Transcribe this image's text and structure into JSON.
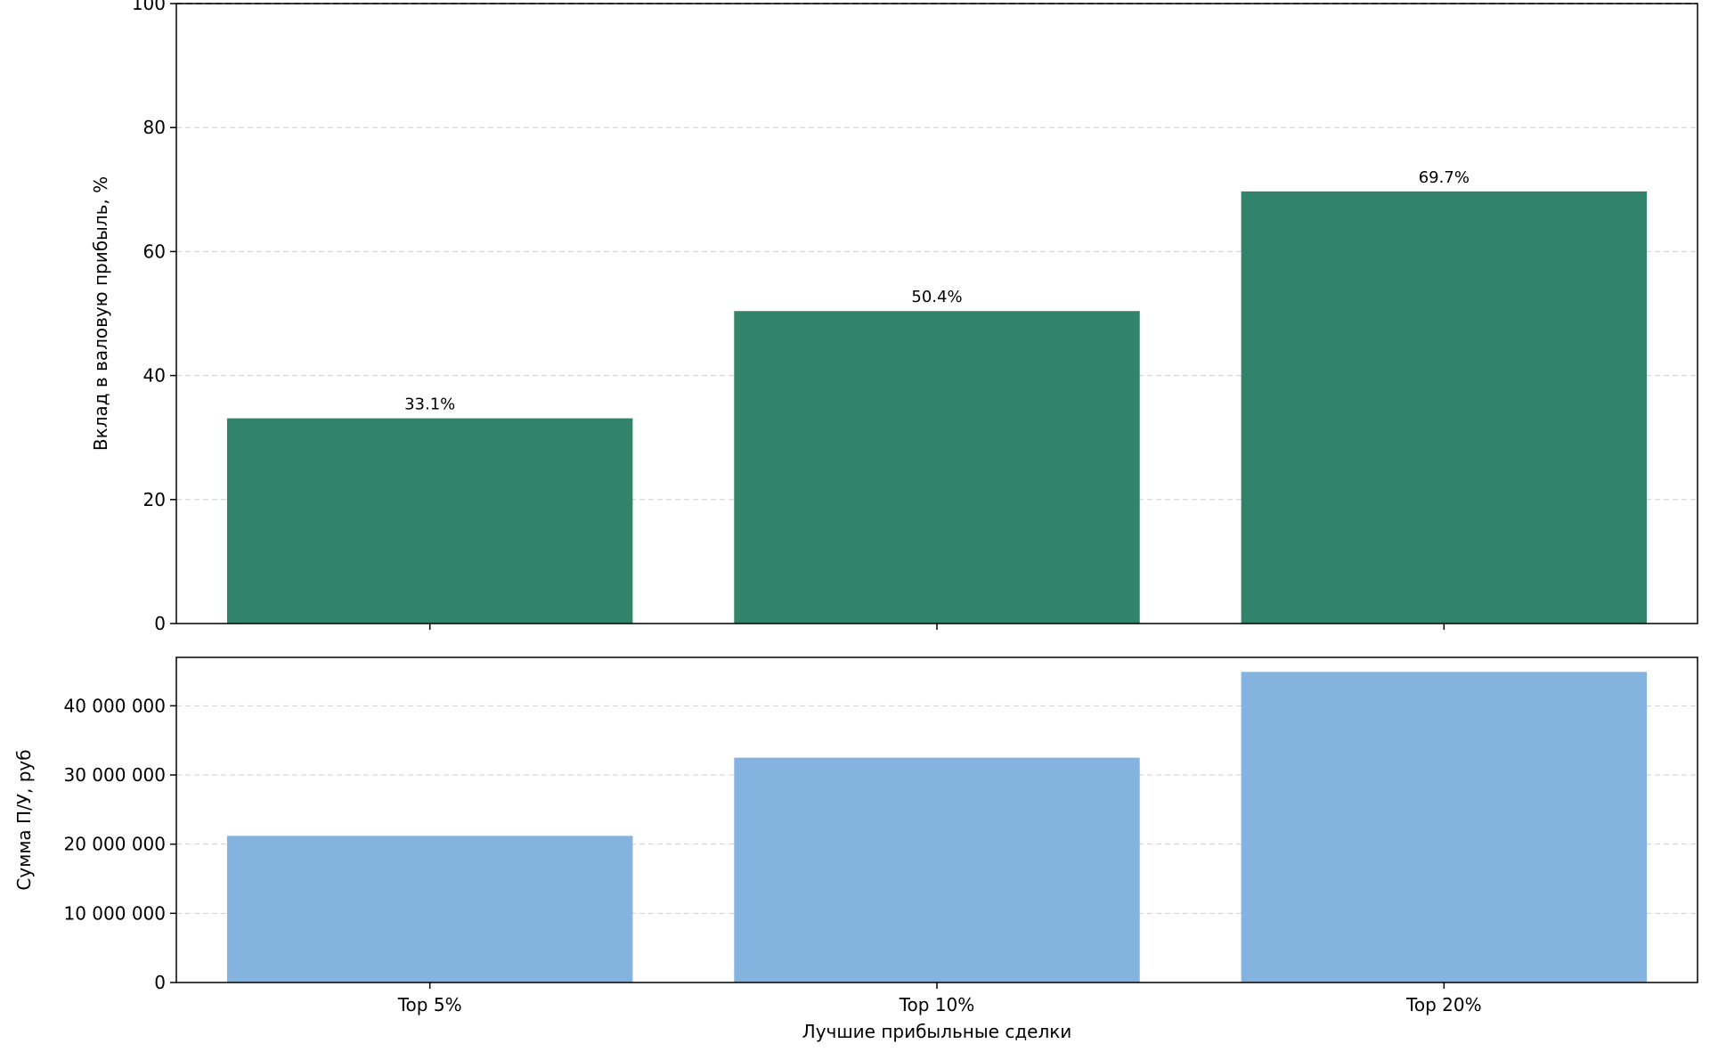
{
  "chart_data": [
    {
      "type": "bar",
      "categories": [
        "Top 5%",
        "Top 10%",
        "Top 20%"
      ],
      "values": [
        33.1,
        50.4,
        69.7
      ],
      "data_labels": [
        "33.1%",
        "50.4%",
        "69.7%"
      ],
      "ylabel": "Вклад в валовую прибыль, %",
      "ylim": [
        0,
        100
      ],
      "yticks": [
        0,
        20,
        40,
        60,
        80,
        100
      ],
      "ytick_labels": [
        "0",
        "20",
        "40",
        "60",
        "80",
        "100"
      ],
      "reference_line": 100,
      "bar_color": "#31846b",
      "grid": true
    },
    {
      "type": "bar",
      "categories": [
        "Top 5%",
        "Top 10%",
        "Top 20%"
      ],
      "values": [
        21200000,
        32500000,
        44900000
      ],
      "xlabel": "Лучшие прибыльные сделки",
      "ylabel": "Сумма П/У, руб",
      "ylim": [
        0,
        47000000
      ],
      "yticks": [
        0,
        10000000,
        20000000,
        30000000,
        40000000
      ],
      "ytick_labels": [
        "0",
        "10 000 000",
        "20 000 000",
        "30 000 000",
        "40 000 000"
      ],
      "bar_color": "#85b3df",
      "grid": true
    }
  ]
}
